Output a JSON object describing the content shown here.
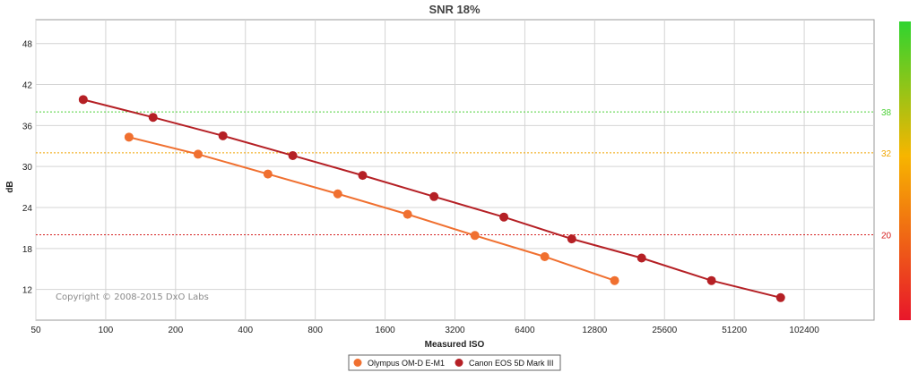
{
  "chart_data": {
    "type": "line",
    "title": "SNR 18%",
    "xlabel": "Measured ISO",
    "ylabel": "dB",
    "x_axis_scale": "log2",
    "x_ticks": [
      50,
      100,
      200,
      400,
      800,
      1600,
      3200,
      6400,
      12800,
      25600,
      51200,
      102400
    ],
    "x_tick_labels": [
      "50",
      "100",
      "200",
      "400",
      "800",
      "1600",
      "3200",
      "6400",
      "12800",
      "25600",
      "51200",
      "102400"
    ],
    "y_ticks": [
      12,
      18,
      24,
      30,
      36,
      42,
      48
    ],
    "y_tick_labels": [
      "12",
      "18",
      "24",
      "30",
      "36",
      "42",
      "48"
    ],
    "ylim": [
      7.5,
      51.5
    ],
    "grid": true,
    "legend_position": "bottom-center",
    "series": [
      {
        "name": "Olympus OM-D E-M1",
        "color": "#f07030",
        "x": [
          126,
          250,
          500,
          1000,
          2000,
          3900,
          7800,
          15600
        ],
        "y": [
          34.3,
          31.8,
          28.9,
          26.0,
          23.0,
          19.9,
          16.8,
          13.3
        ]
      },
      {
        "name": "Canon EOS 5D Mark III",
        "color": "#b52025",
        "x": [
          80,
          160,
          320,
          640,
          1280,
          2600,
          5200,
          10200,
          20400,
          40800,
          81000
        ],
        "y": [
          39.8,
          37.2,
          34.5,
          31.6,
          28.7,
          25.6,
          22.6,
          19.4,
          16.6,
          13.3,
          10.8
        ]
      }
    ],
    "reference_lines": [
      {
        "value": 38,
        "label": "38",
        "color": "#4cd137"
      },
      {
        "value": 32,
        "label": "32",
        "color": "#f0a500"
      },
      {
        "value": 20,
        "label": "20",
        "color": "#d62020"
      }
    ],
    "color_scale": [
      "#e8162a",
      "#f7b500",
      "#2fd42f"
    ],
    "annotation": "Copyright © 2008-2015 DxO Labs"
  }
}
